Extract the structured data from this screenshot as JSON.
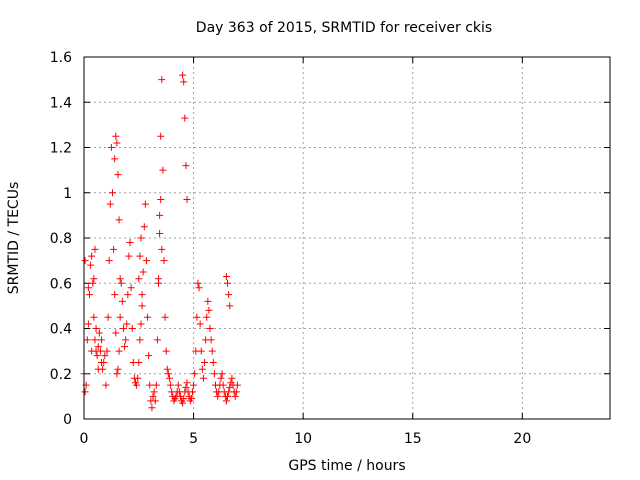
{
  "chart_data": {
    "type": "scatter",
    "title": "Day 363 of 2015, SRMTID for receiver ckis",
    "xlabel": "GPS time / hours",
    "ylabel": "SRMTID / TECUs",
    "xlim": [
      0,
      24
    ],
    "ylim": [
      0,
      1.6
    ],
    "xticks": [
      0,
      5,
      10,
      15,
      20
    ],
    "xtick_labels": [
      "0",
      "5",
      "10",
      "15",
      "20"
    ],
    "yticks": [
      0,
      0.2,
      0.4,
      0.6,
      0.8,
      1,
      1.2,
      1.4,
      1.6
    ],
    "ytick_labels": [
      "0",
      "0.2",
      "0.4",
      "0.6",
      "0.8",
      "1",
      "1.2",
      "1.4",
      "1.6"
    ],
    "grid": true,
    "marker": "+",
    "series": [
      {
        "name": "SRMTID",
        "color": "#ff0000",
        "x": [
          0.0,
          0.05,
          0.1,
          0.15,
          0.2,
          0.25,
          0.3,
          0.35,
          0.4,
          0.45,
          0.5,
          0.55,
          0.6,
          0.65,
          0.7,
          0.75,
          0.8,
          0.85,
          0.9,
          0.95,
          1.0,
          1.05,
          1.1,
          1.15,
          1.2,
          1.25,
          1.3,
          1.35,
          1.4,
          1.45,
          1.5,
          1.55,
          1.6,
          1.65,
          1.7,
          1.75,
          1.8,
          1.85,
          1.9,
          1.95,
          2.0,
          2.05,
          2.1,
          2.15,
          2.2,
          2.25,
          2.3,
          2.35,
          2.4,
          2.45,
          2.5,
          2.55,
          2.6,
          2.65,
          2.7,
          2.75,
          2.8,
          2.85,
          2.9,
          2.95,
          3.0,
          3.05,
          3.1,
          3.15,
          3.2,
          3.25,
          3.3,
          3.35,
          3.4,
          3.45,
          3.5,
          3.55,
          3.6,
          3.65,
          3.7,
          3.75,
          3.8,
          3.85,
          3.9,
          3.95,
          4.0,
          4.05,
          4.1,
          4.15,
          4.2,
          4.25,
          4.3,
          4.35,
          4.4,
          4.45,
          4.5,
          4.55,
          4.6,
          4.65,
          4.7,
          4.75,
          4.8,
          4.85,
          4.9,
          4.95,
          5.0,
          5.05,
          5.1,
          5.15,
          5.2,
          5.25,
          5.3,
          5.35,
          5.4,
          5.45,
          5.5,
          5.55,
          5.6,
          5.65,
          5.7,
          5.75,
          5.8,
          5.85,
          5.9,
          5.95,
          6.0,
          6.05,
          6.1,
          6.15,
          6.2,
          6.25,
          6.3,
          6.35,
          6.4,
          6.45,
          6.5,
          6.55,
          6.6,
          6.65,
          6.7,
          6.75,
          6.8,
          6.85,
          6.9,
          6.95,
          7.0,
          0.05,
          0.2,
          0.35,
          0.45,
          0.5,
          0.55,
          0.65,
          0.8,
          1.4,
          1.45,
          1.5,
          1.55,
          1.6,
          1.65,
          2.5,
          2.55,
          2.6,
          2.65,
          3.4,
          3.45,
          3.5,
          3.55,
          4.5,
          4.55,
          4.6,
          4.65,
          4.7,
          6.5,
          6.55,
          6.6,
          6.65
        ],
        "y": [
          0.2,
          0.12,
          0.15,
          0.35,
          0.42,
          0.55,
          0.68,
          0.72,
          0.6,
          0.45,
          0.35,
          0.3,
          0.28,
          0.32,
          0.38,
          0.3,
          0.25,
          0.22,
          0.25,
          0.28,
          0.15,
          0.3,
          0.45,
          0.7,
          0.95,
          1.2,
          1.0,
          0.75,
          0.55,
          0.38,
          0.2,
          0.22,
          0.3,
          0.45,
          0.6,
          0.52,
          0.4,
          0.32,
          0.35,
          0.42,
          0.55,
          0.72,
          0.78,
          0.58,
          0.4,
          0.25,
          0.18,
          0.16,
          0.15,
          0.18,
          0.25,
          0.35,
          0.42,
          0.5,
          0.65,
          0.85,
          0.95,
          0.7,
          0.45,
          0.28,
          0.15,
          0.08,
          0.05,
          0.1,
          0.12,
          0.08,
          0.15,
          0.35,
          0.6,
          0.9,
          1.25,
          1.5,
          1.1,
          0.7,
          0.45,
          0.3,
          0.22,
          0.2,
          0.18,
          0.15,
          0.12,
          0.1,
          0.08,
          0.09,
          0.1,
          0.12,
          0.15,
          0.12,
          0.1,
          0.08,
          0.07,
          0.09,
          0.12,
          0.14,
          0.16,
          0.12,
          0.1,
          0.08,
          0.09,
          0.12,
          0.15,
          0.2,
          0.3,
          0.45,
          0.6,
          0.58,
          0.42,
          0.3,
          0.22,
          0.18,
          0.25,
          0.35,
          0.45,
          0.52,
          0.48,
          0.4,
          0.35,
          0.3,
          0.25,
          0.2,
          0.15,
          0.12,
          0.1,
          0.12,
          0.15,
          0.18,
          0.2,
          0.15,
          0.12,
          0.1,
          0.08,
          0.1,
          0.12,
          0.14,
          0.16,
          0.18,
          0.15,
          0.12,
          0.1,
          0.12,
          0.15,
          0.7,
          0.58,
          0.3,
          0.62,
          0.75,
          0.4,
          0.22,
          0.35,
          1.15,
          1.25,
          1.22,
          1.08,
          0.88,
          0.62,
          0.62,
          0.72,
          0.8,
          0.55,
          0.62,
          0.82,
          0.97,
          0.75,
          1.52,
          1.49,
          1.33,
          1.12,
          0.97,
          0.63,
          0.6,
          0.55,
          0.5
        ]
      }
    ]
  }
}
